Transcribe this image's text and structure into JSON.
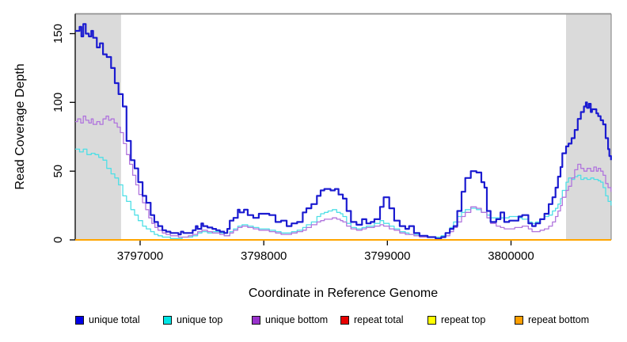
{
  "figure": {
    "background": "#ffffff",
    "plot_box_color": "#8f8f8f",
    "axis_color": "#000000",
    "highlight_color": "#dadada"
  },
  "chart_data": {
    "type": "line",
    "title": "",
    "xlabel": "Coordinate in Reference Genome",
    "ylabel": "Read Coverage Depth",
    "xlim": [
      3796475,
      3800810
    ],
    "ylim": [
      0,
      165
    ],
    "x_ticks": [
      3797000,
      3798000,
      3799000,
      3800000
    ],
    "y_ticks": [
      0,
      50,
      100,
      150
    ],
    "grid": false,
    "interpolation": "step",
    "legend_position": "bottom",
    "highlight_regions": [
      {
        "name": "left-repeat-region",
        "start": 3796475,
        "end": 3796846
      },
      {
        "name": "right-repeat-region",
        "start": 3800445,
        "end": 3800810
      }
    ],
    "series": [
      {
        "name": "unique total",
        "color": "#1b1bd0",
        "legend_fill": "#0000e6",
        "width": 2.2,
        "x": [
          3796475,
          3796510,
          3796525,
          3796540,
          3796560,
          3796585,
          3796605,
          3796620,
          3796650,
          3796675,
          3796700,
          3796730,
          3796765,
          3796795,
          3796825,
          3796860,
          3796890,
          3796925,
          3796955,
          3796985,
          3797020,
          3797050,
          3797085,
          3797115,
          3797145,
          3797180,
          3797210,
          3797245,
          3797275,
          3797310,
          3797330,
          3797350,
          3797390,
          3797425,
          3797450,
          3797465,
          3797495,
          3797510,
          3797545,
          3797585,
          3797615,
          3797645,
          3797680,
          3797705,
          3797725,
          3797755,
          3797790,
          3797805,
          3797840,
          3797870,
          3797915,
          3797960,
          3798000,
          3798045,
          3798095,
          3798140,
          3798185,
          3798225,
          3798270,
          3798315,
          3798345,
          3798385,
          3798430,
          3798460,
          3798490,
          3798540,
          3798575,
          3798605,
          3798640,
          3798670,
          3798705,
          3798750,
          3798795,
          3798830,
          3798865,
          3798895,
          3798940,
          3798970,
          3799015,
          3799055,
          3799100,
          3799145,
          3799175,
          3799215,
          3799260,
          3799325,
          3799390,
          3799435,
          3799470,
          3799505,
          3799535,
          3799565,
          3799600,
          3799630,
          3799675,
          3799720,
          3799760,
          3799785,
          3799805,
          3799835,
          3799880,
          3799915,
          3799945,
          3799985,
          3800030,
          3800060,
          3800090,
          3800140,
          3800170,
          3800200,
          3800235,
          3800270,
          3800305,
          3800335,
          3800360,
          3800380,
          3800400,
          3800415,
          3800445,
          3800465,
          3800490,
          3800515,
          3800540,
          3800565,
          3800590,
          3800605,
          3800615,
          3800630,
          3800645,
          3800655,
          3800670,
          3800690,
          3800705,
          3800725,
          3800745,
          3800765,
          3800785,
          3800795,
          3800809
        ],
        "y": [
          152,
          155,
          148,
          157,
          150,
          148,
          152,
          147,
          140,
          143,
          135,
          133,
          125,
          114,
          106,
          97,
          72,
          58,
          52,
          42,
          32,
          27,
          18,
          13,
          10,
          7,
          6,
          5,
          5,
          4,
          6,
          5,
          5,
          7,
          10,
          8,
          12,
          10,
          9,
          8,
          7,
          6,
          5,
          8,
          14,
          16,
          22,
          20,
          22,
          18,
          16,
          19,
          19,
          18,
          13,
          14,
          10,
          12,
          13,
          20,
          23,
          26,
          32,
          36,
          37,
          36,
          37,
          33,
          30,
          21,
          13,
          11,
          15,
          12,
          13,
          15,
          24,
          31,
          23,
          14,
          10,
          8,
          10,
          5,
          3,
          2,
          1,
          2,
          5,
          8,
          10,
          21,
          35,
          45,
          50,
          49,
          42,
          38,
          21,
          13,
          15,
          20,
          13,
          14,
          14,
          17,
          18,
          12,
          10,
          12,
          15,
          19,
          26,
          31,
          38,
          46,
          53,
          63,
          68,
          70,
          74,
          80,
          88,
          93,
          97,
          100,
          96,
          99,
          93,
          95,
          95,
          92,
          90,
          87,
          84,
          74,
          66,
          61,
          58
        ]
      },
      {
        "name": "unique top",
        "color": "#4edfe6",
        "legend_fill": "#00e5e5",
        "width": 1.3,
        "x": [
          3796475,
          3796510,
          3796540,
          3796570,
          3796605,
          3796635,
          3796665,
          3796700,
          3796730,
          3796765,
          3796795,
          3796825,
          3796860,
          3796890,
          3796925,
          3796955,
          3796985,
          3797020,
          3797050,
          3797085,
          3797115,
          3797145,
          3797180,
          3797245,
          3797340,
          3797425,
          3797465,
          3797500,
          3797545,
          3797585,
          3797645,
          3797680,
          3797725,
          3797755,
          3797790,
          3797825,
          3797870,
          3797915,
          3797960,
          3798000,
          3798045,
          3798095,
          3798140,
          3798185,
          3798225,
          3798270,
          3798315,
          3798345,
          3798385,
          3798430,
          3798460,
          3798490,
          3798520,
          3798555,
          3798590,
          3798620,
          3798640,
          3798670,
          3798705,
          3798750,
          3798795,
          3798830,
          3798870,
          3798895,
          3798940,
          3798970,
          3799015,
          3799055,
          3799100,
          3799145,
          3799175,
          3799215,
          3799260,
          3799325,
          3799390,
          3799435,
          3799470,
          3799505,
          3799535,
          3799565,
          3799600,
          3799630,
          3799675,
          3799720,
          3799760,
          3799805,
          3799835,
          3799880,
          3799915,
          3799945,
          3799985,
          3800030,
          3800060,
          3800090,
          3800140,
          3800170,
          3800200,
          3800235,
          3800270,
          3800305,
          3800335,
          3800360,
          3800380,
          3800400,
          3800415,
          3800445,
          3800465,
          3800490,
          3800515,
          3800540,
          3800565,
          3800590,
          3800615,
          3800645,
          3800670,
          3800690,
          3800705,
          3800725,
          3800745,
          3800765,
          3800785,
          3800809
        ],
        "y": [
          66,
          64,
          66,
          62,
          63,
          62,
          60,
          58,
          52,
          48,
          45,
          40,
          32,
          28,
          22,
          18,
          14,
          10,
          8,
          6,
          4,
          3,
          2,
          1,
          2,
          3,
          5,
          6,
          5,
          6,
          5,
          3,
          6,
          8,
          10,
          11,
          10,
          9,
          8,
          8,
          7,
          6,
          5,
          5,
          6,
          7,
          9,
          11,
          13,
          17,
          19,
          20,
          21,
          22,
          20,
          19,
          17,
          12,
          9,
          8,
          9,
          10,
          10,
          12,
          14,
          12,
          10,
          8,
          6,
          5,
          4,
          4,
          3,
          2,
          2,
          3,
          5,
          9,
          13,
          17,
          20,
          22,
          23,
          22,
          20,
          18,
          16,
          16,
          16,
          16,
          17,
          17,
          16,
          15,
          13,
          12,
          13,
          15,
          17,
          18,
          21,
          23,
          26,
          30,
          36,
          42,
          45,
          44,
          46,
          47,
          44,
          45,
          44,
          45,
          44,
          44,
          43,
          42,
          38,
          32,
          28,
          25
        ]
      },
      {
        "name": "unique bottom",
        "color": "#b074dd",
        "legend_fill": "#9932cc",
        "width": 1.3,
        "x": [
          3796475,
          3796495,
          3796520,
          3796540,
          3796560,
          3796585,
          3796605,
          3796620,
          3796650,
          3796675,
          3796700,
          3796725,
          3796745,
          3796765,
          3796790,
          3796815,
          3796840,
          3796865,
          3796890,
          3796915,
          3796940,
          3796965,
          3796990,
          3797020,
          3797045,
          3797070,
          3797095,
          3797120,
          3797145,
          3797180,
          3797210,
          3797245,
          3797310,
          3797390,
          3797425,
          3797465,
          3797500,
          3797545,
          3797585,
          3797645,
          3797680,
          3797725,
          3797755,
          3797790,
          3797825,
          3797870,
          3797915,
          3797960,
          3798000,
          3798045,
          3798095,
          3798140,
          3798185,
          3798225,
          3798270,
          3798315,
          3798345,
          3798385,
          3798430,
          3798460,
          3798490,
          3798520,
          3798555,
          3798590,
          3798620,
          3798640,
          3798670,
          3798705,
          3798750,
          3798795,
          3798830,
          3798870,
          3798895,
          3798940,
          3798970,
          3799015,
          3799055,
          3799100,
          3799145,
          3799175,
          3799215,
          3799260,
          3799325,
          3799390,
          3799435,
          3799470,
          3799505,
          3799535,
          3799565,
          3799600,
          3799630,
          3799675,
          3799720,
          3799760,
          3799805,
          3799835,
          3799880,
          3799915,
          3799945,
          3799985,
          3800030,
          3800060,
          3800090,
          3800140,
          3800170,
          3800200,
          3800235,
          3800270,
          3800305,
          3800335,
          3800360,
          3800380,
          3800400,
          3800415,
          3800445,
          3800465,
          3800490,
          3800515,
          3800540,
          3800565,
          3800590,
          3800615,
          3800645,
          3800670,
          3800690,
          3800705,
          3800725,
          3800745,
          3800765,
          3800785,
          3800809
        ],
        "y": [
          86,
          88,
          85,
          90,
          87,
          85,
          88,
          84,
          86,
          84,
          88,
          90,
          87,
          88,
          85,
          82,
          78,
          70,
          62,
          55,
          47,
          40,
          33,
          27,
          22,
          16,
          12,
          9,
          7,
          5,
          4,
          3,
          2,
          3,
          4,
          6,
          7,
          6,
          5,
          4,
          3,
          5,
          7,
          9,
          10,
          9,
          8,
          7,
          7,
          6,
          5,
          4,
          4,
          5,
          6,
          7,
          9,
          11,
          13,
          14,
          15,
          15,
          16,
          15,
          14,
          13,
          10,
          8,
          7,
          8,
          9,
          9,
          10,
          11,
          10,
          8,
          7,
          5,
          4,
          4,
          3,
          2,
          2,
          1,
          2,
          3,
          6,
          9,
          13,
          17,
          20,
          24,
          23,
          20,
          16,
          12,
          10,
          9,
          8,
          8,
          9,
          9,
          10,
          8,
          6,
          6,
          7,
          8,
          10,
          13,
          17,
          21,
          25,
          31,
          36,
          39,
          45,
          51,
          55,
          52,
          50,
          52,
          50,
          53,
          50,
          52,
          50,
          47,
          41,
          38,
          35
        ]
      },
      {
        "name": "repeat total",
        "color": "#e00000",
        "legend_fill": "#e80000",
        "width": 1.3,
        "x": [
          3796475,
          3800810
        ],
        "y": [
          0,
          0
        ]
      },
      {
        "name": "repeat top",
        "color": "#ffff00",
        "legend_fill": "#ffff00",
        "width": 1.3,
        "x": [
          3796475,
          3800810
        ],
        "y": [
          0,
          0
        ]
      },
      {
        "name": "repeat bottom",
        "color": "#ffa500",
        "legend_fill": "#ff9f00",
        "width": 2,
        "x": [
          3796475,
          3800810
        ],
        "y": [
          0,
          0
        ]
      }
    ]
  }
}
